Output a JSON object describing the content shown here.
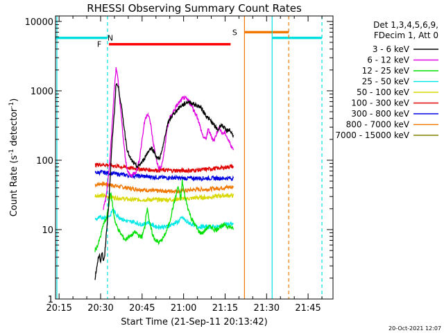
{
  "chart_data": {
    "type": "line",
    "title": "RHESSI Observing Summary Count Rates",
    "xlabel": "Start Time (21-Sep-11 20:13:42)",
    "ylabel_main": "Count Rate (s",
    "ylabel_sup1": "-1",
    "ylabel_mid": " detector",
    "ylabel_sup2": "-1",
    "ylabel_end": ")",
    "timestamp": "20-Oct-2021 12:07",
    "y_scale": "log",
    "xlim_minutes": [
      13.7,
      114.0
    ],
    "ylim": [
      1,
      12000
    ],
    "x_ticks": [
      {
        "t": 15,
        "label": "20:15"
      },
      {
        "t": 30,
        "label": "20:30"
      },
      {
        "t": 45,
        "label": "20:45"
      },
      {
        "t": 60,
        "label": "21:00"
      },
      {
        "t": 75,
        "label": "21:15"
      },
      {
        "t": 90,
        "label": "21:30"
      },
      {
        "t": 105,
        "label": "21:45"
      }
    ],
    "y_ticks": [
      {
        "v": 1,
        "label": "1"
      },
      {
        "v": 10,
        "label": "10"
      },
      {
        "v": 100,
        "label": "100"
      },
      {
        "v": 1000,
        "label": "1000"
      },
      {
        "v": 10000,
        "label": "10000"
      }
    ],
    "legend": {
      "position": "top-right",
      "header1": "Det 1,3,4,5,6,9,",
      "header2": "FDecim 1, Att 0",
      "entries": [
        {
          "label": "3 - 6 keV",
          "color": "#000000"
        },
        {
          "label": "6 - 12 keV",
          "color": "#e000e0"
        },
        {
          "label": "12 - 25 keV",
          "color": "#00e000"
        },
        {
          "label": "25 - 50 keV",
          "color": "#00e8e8"
        },
        {
          "label": "50 - 100 keV",
          "color": "#d8d800"
        },
        {
          "label": "100 - 300 keV",
          "color": "#e00000"
        },
        {
          "label": "300 - 800 keV",
          "color": "#0000e0"
        },
        {
          "label": "800 - 7000 keV",
          "color": "#f07800"
        },
        {
          "label": "7000 - 15000 keV",
          "color": "#808000"
        }
      ]
    },
    "flags": [
      {
        "label": "N",
        "color": "#00e0e0",
        "level": 5800,
        "t_start": 13.7,
        "t_end": 32.5,
        "label_t": 33.5
      },
      {
        "label": "N",
        "color": "#00e0e0",
        "level": 5800,
        "t_start": 92.0,
        "t_end": 110.0
      },
      {
        "label": "F",
        "color": "#ff0000",
        "level": 4700,
        "t_start": 33.0,
        "t_end": 77.0,
        "label_t": 29.5
      },
      {
        "label": "S",
        "color": "#f07800",
        "level": 7000,
        "t_start": 82.0,
        "t_end": 98.0,
        "label_t": 78.5
      }
    ],
    "vlines": [
      {
        "t": 14.2,
        "color": "#00e0e0",
        "dash": false
      },
      {
        "t": 32.5,
        "color": "#00e0e0",
        "dash": true
      },
      {
        "t": 82.0,
        "color": "#f07800",
        "dash": false
      },
      {
        "t": 92.0,
        "color": "#00e0e0",
        "dash": false
      },
      {
        "t": 98.0,
        "color": "#f07800",
        "dash": true
      },
      {
        "t": 110.0,
        "color": "#00e0e0",
        "dash": true
      }
    ],
    "series": [
      {
        "name": "3 - 6 keV",
        "color": "#000000",
        "x": [
          28.0,
          29.0,
          29.5,
          30.0,
          30.5,
          31.0,
          31.5,
          32.0,
          32.8,
          33.5,
          34.2,
          35.0,
          35.6,
          36.5,
          37.5,
          38.5,
          39.5,
          40.5,
          41.5,
          42.5,
          43.5,
          44.5,
          45.5,
          46.5,
          47.5,
          48.5,
          49.5,
          50.5,
          51.5,
          52.5,
          53.5,
          54.5,
          55.5,
          56.5,
          57.5,
          58.5,
          59.5,
          60.5,
          61.5,
          62.5,
          63.5,
          64.5,
          65.5,
          66.5,
          67.5,
          68.5,
          69.5,
          70.5,
          71.5,
          72.5,
          73.5,
          74.5,
          75.5,
          76.5,
          77.5,
          78.0
        ],
        "y": [
          2,
          3.6,
          4.5,
          3.2,
          4.8,
          3.5,
          4.5,
          8,
          20,
          60,
          200,
          500,
          1300,
          1100,
          600,
          300,
          150,
          110,
          95,
          85,
          80,
          90,
          100,
          120,
          140,
          150,
          130,
          105,
          110,
          150,
          250,
          350,
          420,
          470,
          520,
          580,
          620,
          650,
          700,
          680,
          650,
          620,
          600,
          560,
          480,
          420,
          380,
          340,
          300,
          270,
          330,
          300,
          260,
          280,
          240,
          230
        ]
      },
      {
        "name": "6 - 12 keV",
        "color": "#e000e0",
        "x": [
          31.0,
          32.0,
          33.0,
          34.0,
          35.0,
          35.6,
          36.2,
          37.0,
          38.0,
          39.0,
          40.0,
          41.0,
          42.0,
          43.0,
          44.0,
          45.0,
          46.0,
          47.0,
          48.0,
          49.0,
          50.0,
          51.0,
          52.0,
          53.0,
          54.0,
          55.0,
          56.0,
          57.0,
          58.0,
          59.0,
          60.0,
          61.0,
          62.0,
          63.0,
          64.0,
          65.0,
          66.0,
          67.0,
          68.0,
          69.0,
          70.0,
          71.0,
          72.0,
          73.0,
          74.0,
          75.0,
          76.0,
          77.0,
          78.0
        ],
        "y": [
          20,
          30,
          70,
          250,
          1100,
          2200,
          1500,
          700,
          250,
          100,
          65,
          60,
          65,
          70,
          100,
          200,
          380,
          480,
          350,
          180,
          110,
          75,
          80,
          130,
          280,
          400,
          480,
          560,
          650,
          720,
          800,
          760,
          700,
          600,
          500,
          420,
          300,
          220,
          200,
          280,
          220,
          190,
          250,
          300,
          240,
          250,
          200,
          170,
          140
        ]
      },
      {
        "name": "12 - 25 keV",
        "color": "#00e000",
        "x": [
          28.0,
          29.0,
          30.0,
          31.0,
          32.0,
          33.0,
          33.5,
          34.0,
          34.5,
          35.0,
          35.5,
          36.0,
          37.0,
          38.0,
          39.0,
          40.0,
          41.0,
          42.0,
          43.0,
          44.0,
          45.0,
          46.0,
          46.5,
          47.0,
          47.5,
          48.0,
          49.0,
          50.0,
          51.0,
          52.0,
          53.0,
          54.0,
          55.0,
          56.0,
          57.0,
          58.0,
          59.0,
          59.5,
          60.0,
          60.5,
          61.0,
          62.0,
          63.0,
          64.0,
          65.0,
          66.0,
          67.0,
          68.0,
          69.0,
          70.0,
          71.0,
          72.0,
          73.0,
          74.0,
          75.0,
          76.0,
          77.0,
          78.0
        ],
        "y": [
          5,
          6,
          8,
          12,
          14,
          22,
          35,
          28,
          20,
          15,
          12,
          11,
          9,
          8,
          7,
          8,
          8,
          9,
          9,
          8,
          8,
          11,
          18,
          20,
          14,
          11,
          8,
          7,
          6.5,
          7,
          8,
          10,
          13,
          20,
          28,
          42,
          28,
          50,
          38,
          30,
          25,
          18,
          14,
          12,
          10,
          9,
          9,
          10,
          11,
          11,
          10,
          10,
          11,
          11,
          12,
          11,
          11,
          10
        ]
      },
      {
        "name": "25 - 50 keV",
        "color": "#00e8e8",
        "x": [
          28.0,
          30.0,
          32.0,
          33.5,
          34.5,
          35.0,
          36.0,
          38.0,
          40.0,
          42.0,
          44.0,
          46.0,
          47.0,
          48.0,
          50.0,
          52.0,
          54.0,
          56.0,
          58.0,
          59.5,
          61.0,
          63.0,
          65.0,
          67.0,
          69.0,
          71.0,
          73.0,
          75.0,
          77.0,
          78.0
        ],
        "y": [
          14,
          15,
          15,
          16,
          20,
          18,
          16,
          14,
          13,
          13,
          12,
          12,
          13,
          12,
          11,
          11,
          11,
          12,
          13,
          15,
          13,
          12,
          11,
          11,
          11,
          11,
          11,
          12,
          12,
          12
        ]
      },
      {
        "name": "50 - 100 keV",
        "color": "#d8d800",
        "x": [
          28.0,
          30.0,
          32.0,
          35.0,
          38.0,
          41.0,
          44.0,
          47.0,
          50.0,
          53.0,
          56.0,
          59.0,
          62.0,
          65.0,
          68.0,
          71.0,
          74.0,
          77.0,
          78.0
        ],
        "y": [
          31,
          31,
          30,
          29,
          28,
          27,
          27,
          27,
          27,
          27,
          27,
          28,
          28,
          29,
          29,
          30,
          31,
          31,
          31
        ]
      },
      {
        "name": "100 - 300 keV",
        "color": "#e00000",
        "x": [
          28.0,
          30.0,
          32.0,
          35.0,
          38.0,
          41.0,
          44.0,
          47.0,
          50.0,
          53.0,
          56.0,
          59.0,
          62.0,
          65.0,
          68.0,
          71.0,
          74.0,
          77.0,
          78.0
        ],
        "y": [
          85,
          87,
          86,
          83,
          80,
          77,
          75,
          73,
          72,
          72,
          71,
          71,
          71,
          72,
          74,
          76,
          78,
          81,
          82
        ]
      },
      {
        "name": "300 - 800 keV",
        "color": "#0000e0",
        "x": [
          28.0,
          30.0,
          32.0,
          35.0,
          38.0,
          41.0,
          44.0,
          47.0,
          50.0,
          53.0,
          56.0,
          59.0,
          62.0,
          65.0,
          68.0,
          71.0,
          74.0,
          77.0,
          78.0
        ],
        "y": [
          66,
          67,
          66,
          64,
          62,
          60,
          59,
          58,
          57,
          56,
          56,
          55,
          55,
          55,
          55,
          55,
          55,
          55,
          55
        ]
      },
      {
        "name": "800 - 7000 keV",
        "color": "#f07800",
        "x": [
          28.0,
          30.0,
          32.0,
          35.0,
          38.0,
          41.0,
          44.0,
          47.0,
          50.0,
          53.0,
          56.0,
          59.0,
          62.0,
          65.0,
          68.0,
          71.0,
          74.0,
          77.0,
          78.0
        ],
        "y": [
          44,
          46,
          45,
          43,
          41,
          39,
          38,
          37,
          36,
          36,
          36,
          36,
          37,
          38,
          38,
          39,
          40,
          41,
          41
        ]
      },
      {
        "name": "7000 - 15000 keV",
        "color": "#808000",
        "x": [],
        "y": []
      }
    ]
  }
}
